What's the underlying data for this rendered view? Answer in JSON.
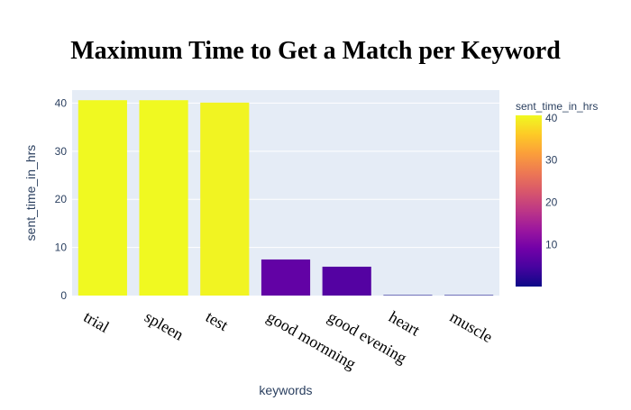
{
  "chart_data": {
    "type": "bar",
    "title": "Maximum Time to Get a Match per Keyword",
    "xlabel": "keywords",
    "ylabel": "sent_time_in_hrs",
    "categories": [
      "trial",
      "spleen",
      "test",
      "good mornning",
      "good evening",
      "heart",
      "muscle"
    ],
    "values": [
      40.6,
      40.6,
      40.1,
      7.5,
      6.0,
      0.1,
      0.1
    ],
    "ylim": [
      0,
      42.7
    ],
    "yticks": [
      0,
      10,
      20,
      30,
      40
    ],
    "grid": true,
    "colorbar": {
      "title": "sent_time_in_hrs",
      "range": [
        0.1,
        40.6
      ],
      "ticks": [
        10,
        20,
        30,
        40
      ],
      "colorscale": [
        "#0d0887",
        "#46039f",
        "#7201a8",
        "#9c179e",
        "#bd3786",
        "#d8576b",
        "#ed7953",
        "#fb9f3a",
        "#fdca26",
        "#f0f921"
      ]
    }
  },
  "colors": {
    "plot_background": "#e5ecf6",
    "grid": "#ffffff",
    "axis_text": "#2a3f5f"
  }
}
